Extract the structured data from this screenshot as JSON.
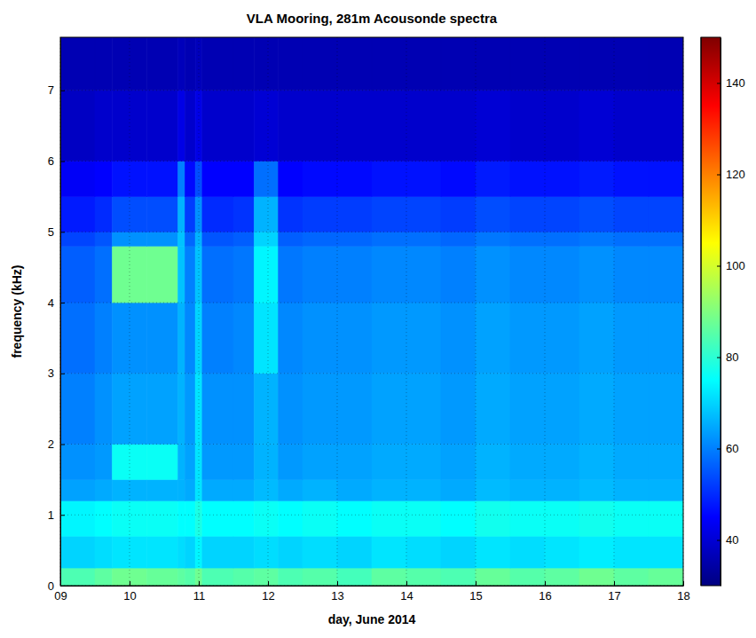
{
  "chart_data": {
    "type": "heatmap",
    "title": "VLA Mooring, 281m Acousonde spectra",
    "x_label": "day, June 2014",
    "y_label": "frequency (kHz)",
    "xlim": [
      9,
      18
    ],
    "xticks": [
      {
        "value": 9,
        "label": "09"
      },
      10,
      11,
      12,
      13,
      14,
      15,
      16,
      17,
      18
    ],
    "ylim": [
      0,
      7.75
    ],
    "yticks": [
      0,
      1,
      2,
      3,
      4,
      5,
      6,
      7
    ],
    "grid": true,
    "x_edges": [
      9,
      9.5,
      9.75,
      10.25,
      10.7,
      10.8,
      10.95,
      11.05,
      11.5,
      11.8,
      12.15,
      12.5,
      13,
      13.5,
      14,
      14.5,
      15,
      15.5,
      16,
      16.5,
      17,
      17.5,
      18
    ],
    "y_edges": [
      0,
      0.25,
      0.7,
      1.2,
      1.5,
      2,
      3,
      4,
      4.8,
      5,
      5.5,
      6,
      7,
      7.75
    ],
    "values": [
      [
        84,
        86,
        88,
        87,
        86,
        85,
        88,
        84,
        85,
        86,
        84,
        85,
        83,
        86,
        85,
        84,
        87,
        85,
        86,
        88,
        86,
        87
      ],
      [
        70,
        71,
        72,
        72,
        71,
        70,
        74,
        70,
        70,
        71,
        70,
        71,
        70,
        72,
        71,
        70,
        72,
        71,
        72,
        73,
        72,
        72
      ],
      [
        74,
        75,
        76,
        76,
        75,
        75,
        78,
        75,
        75,
        76,
        75,
        76,
        75,
        76,
        76,
        75,
        77,
        76,
        76,
        77,
        76,
        76
      ],
      [
        64,
        65,
        66,
        66,
        66,
        65,
        72,
        65,
        65,
        67,
        65,
        66,
        65,
        66,
        66,
        65,
        67,
        66,
        66,
        67,
        66,
        66
      ],
      [
        62,
        63,
        76,
        76,
        66,
        64,
        72,
        63,
        63,
        66,
        63,
        64,
        64,
        65,
        65,
        64,
        66,
        65,
        65,
        66,
        65,
        65
      ],
      [
        60,
        62,
        64,
        64,
        66,
        63,
        72,
        62,
        62,
        66,
        62,
        63,
        63,
        64,
        64,
        63,
        65,
        64,
        64,
        65,
        64,
        64
      ],
      [
        58,
        60,
        62,
        62,
        66,
        61,
        70,
        60,
        61,
        72,
        61,
        62,
        62,
        63,
        63,
        62,
        64,
        63,
        63,
        64,
        63,
        63
      ],
      [
        56,
        58,
        88,
        88,
        68,
        60,
        68,
        58,
        59,
        74,
        59,
        60,
        60,
        61,
        61,
        60,
        62,
        61,
        61,
        62,
        61,
        61
      ],
      [
        53,
        55,
        62,
        62,
        68,
        57,
        66,
        55,
        56,
        70,
        56,
        57,
        57,
        58,
        58,
        57,
        59,
        58,
        58,
        59,
        58,
        58
      ],
      [
        48,
        50,
        54,
        54,
        66,
        52,
        62,
        50,
        51,
        66,
        51,
        52,
        52,
        53,
        53,
        52,
        54,
        53,
        53,
        54,
        53,
        53
      ],
      [
        44,
        45,
        47,
        47,
        60,
        46,
        54,
        45,
        45,
        58,
        45,
        46,
        46,
        47,
        47,
        46,
        48,
        47,
        47,
        48,
        47,
        47
      ],
      [
        38,
        39,
        39,
        39,
        42,
        39,
        42,
        39,
        39,
        40,
        39,
        39,
        39,
        39,
        39,
        39,
        40,
        39,
        39,
        40,
        39,
        39
      ],
      [
        36,
        36,
        36,
        36,
        37,
        36,
        37,
        36,
        36,
        36,
        36,
        36,
        36,
        36,
        36,
        36,
        36,
        36,
        36,
        36,
        36,
        36
      ]
    ],
    "colorbar_lim": [
      30,
      150
    ],
    "colorbar_ticks": [
      40,
      60,
      80,
      100,
      120,
      140
    ]
  }
}
